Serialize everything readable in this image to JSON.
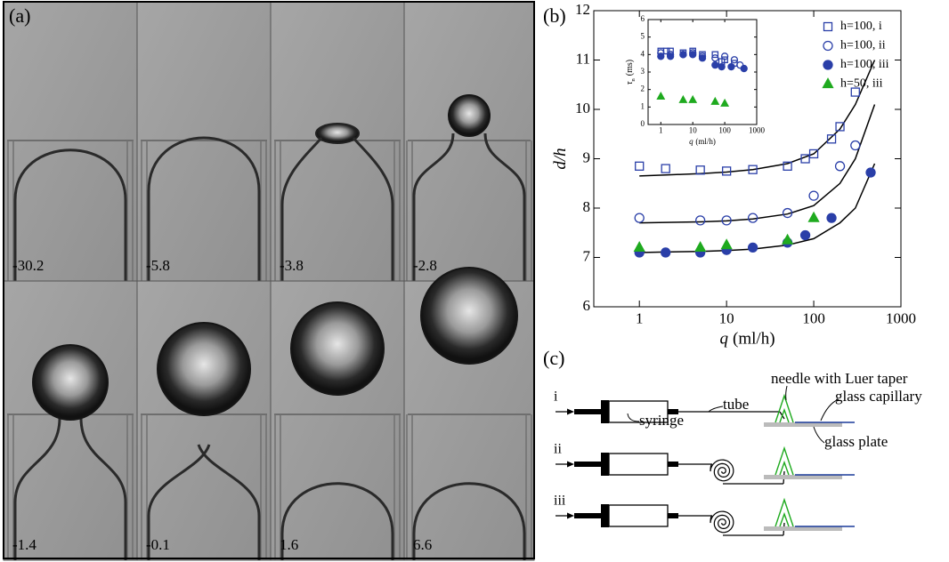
{
  "panel_a": {
    "label": "(a)",
    "frames": [
      "-30.2",
      "-5.8",
      "-3.8",
      "-2.8",
      "-1.4",
      "-0.1",
      "1.6",
      "6.6"
    ]
  },
  "panel_b": {
    "label": "(b)"
  },
  "chart_data": [
    {
      "type": "scatter",
      "xscale": "log",
      "xlim": [
        0.3,
        1000
      ],
      "xticks": [
        1,
        10,
        100,
        1000
      ],
      "ylim": [
        6,
        12
      ],
      "yticks": [
        6,
        7,
        8,
        9,
        10,
        11,
        12
      ],
      "xlabel_var": "q",
      "xlabel_unit": "(ml/h)",
      "ylabel": "d/h",
      "legend": "upper right",
      "series": [
        {
          "name": "h=100, i",
          "color": "#2a3fa8",
          "marker": "square",
          "filled": false,
          "x": [
            1,
            2,
            5,
            10,
            20,
            50,
            80,
            100,
            160,
            200,
            300
          ],
          "values": [
            8.85,
            8.8,
            8.77,
            8.75,
            8.78,
            8.85,
            9.0,
            9.1,
            9.4,
            9.65,
            10.35
          ]
        },
        {
          "name": "h=100, ii",
          "color": "#2a3fa8",
          "marker": "circle",
          "filled": false,
          "x": [
            1,
            5,
            10,
            20,
            50,
            100,
            200,
            300
          ],
          "values": [
            7.8,
            7.75,
            7.75,
            7.8,
            7.9,
            8.25,
            8.85,
            9.27
          ]
        },
        {
          "name": "h=100, iii",
          "color": "#2a3fa8",
          "marker": "circle",
          "filled": true,
          "x": [
            1,
            2,
            5,
            10,
            20,
            50,
            80,
            160,
            450
          ],
          "values": [
            7.1,
            7.1,
            7.1,
            7.15,
            7.2,
            7.3,
            7.45,
            7.8,
            8.72
          ]
        },
        {
          "name": "h=50, iii",
          "color": "#1faa1f",
          "marker": "triangle",
          "filled": true,
          "x": [
            1,
            5,
            10,
            50,
            100
          ],
          "values": [
            7.2,
            7.2,
            7.25,
            7.35,
            7.8
          ]
        }
      ],
      "fits": [
        {
          "color": "#000000",
          "x": [
            1,
            2,
            5,
            10,
            20,
            50,
            100,
            200,
            300,
            500
          ],
          "values": [
            8.65,
            8.67,
            8.7,
            8.73,
            8.78,
            8.9,
            9.1,
            9.6,
            10.1,
            11.0
          ]
        },
        {
          "color": "#000000",
          "x": [
            1,
            2,
            5,
            10,
            20,
            50,
            100,
            200,
            300,
            500
          ],
          "values": [
            7.7,
            7.71,
            7.72,
            7.74,
            7.78,
            7.88,
            8.05,
            8.5,
            9.0,
            10.1
          ]
        },
        {
          "color": "#000000",
          "x": [
            1,
            2,
            5,
            10,
            20,
            50,
            100,
            200,
            300,
            500
          ],
          "values": [
            7.1,
            7.11,
            7.12,
            7.14,
            7.17,
            7.25,
            7.38,
            7.7,
            8.0,
            8.9
          ]
        }
      ]
    },
    {
      "type": "scatter",
      "xscale": "log",
      "xlim": [
        0.4,
        1000
      ],
      "xticks": [
        1,
        10,
        100,
        1000
      ],
      "ylim": [
        0,
        6
      ],
      "yticks": [
        0,
        1,
        2,
        3,
        4,
        5,
        6
      ],
      "xlabel_var": "q",
      "xlabel_unit": "(ml/h)",
      "ylabel": "τ",
      "ylabel_sub": "n",
      "ylabel_unit": "(ms)",
      "series": [
        {
          "color": "#2a3fa8",
          "marker": "square",
          "filled": false,
          "x": [
            1,
            1.5,
            2,
            5,
            10,
            20,
            50,
            80,
            100,
            200
          ],
          "values": [
            4.2,
            4.2,
            4.2,
            4.1,
            4.2,
            4.0,
            4.0,
            3.6,
            3.7,
            3.5
          ]
        },
        {
          "color": "#2a3fa8",
          "marker": "circle",
          "filled": false,
          "x": [
            1,
            2,
            5,
            10,
            20,
            50,
            100,
            200,
            300
          ],
          "values": [
            4.1,
            4.0,
            4.0,
            4.1,
            3.9,
            3.8,
            3.9,
            3.7,
            3.4
          ]
        },
        {
          "color": "#2a3fa8",
          "marker": "circle",
          "filled": true,
          "x": [
            1,
            2,
            5,
            10,
            20,
            50,
            80,
            160,
            400
          ],
          "values": [
            3.9,
            3.9,
            4.0,
            4.0,
            3.8,
            3.4,
            3.3,
            3.3,
            3.2
          ]
        },
        {
          "color": "#1faa1f",
          "marker": "triangle",
          "filled": true,
          "x": [
            1,
            5,
            10,
            50,
            100
          ],
          "values": [
            1.6,
            1.4,
            1.4,
            1.3,
            1.2
          ]
        }
      ]
    }
  ],
  "panel_c": {
    "label": "(c)",
    "rows": [
      "i",
      "ii",
      "iii"
    ],
    "needle": "needle with Luer taper",
    "capillary": "glass capillary",
    "syringe": "syringe",
    "tube": "tube",
    "plate": "glass plate"
  }
}
